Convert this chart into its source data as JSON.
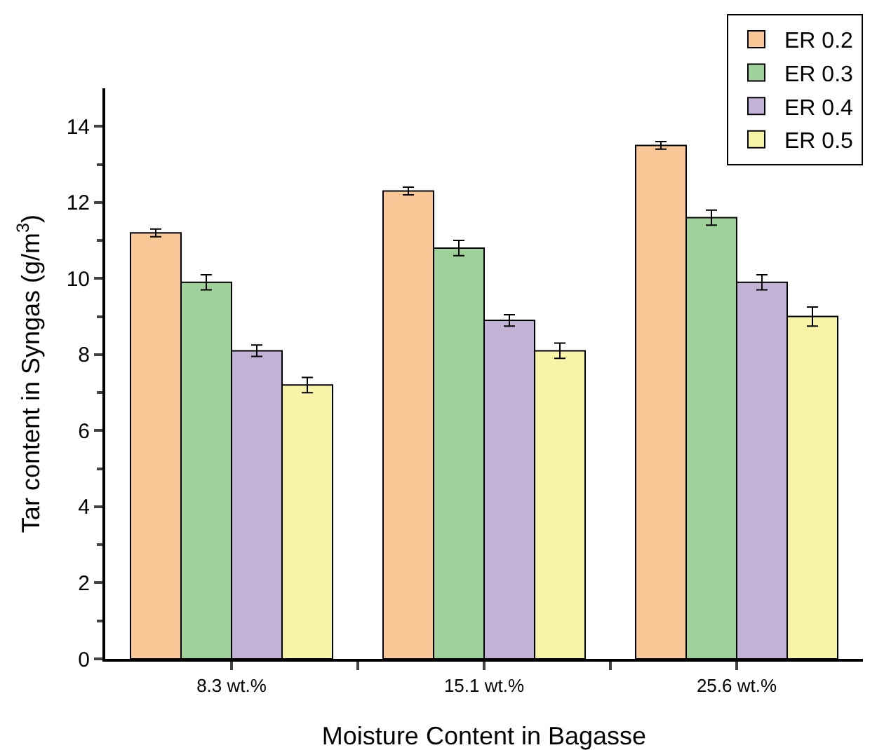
{
  "chart_data": {
    "type": "bar",
    "xlabel": "Moisture Content in Bagasse",
    "ylabel": "Tar content in Syngas (g/m$^{3}$)",
    "categories": [
      "8.3 wt.%",
      "15.1 wt.%",
      "25.6 wt.%"
    ],
    "series": [
      {
        "name": "ER 0.2",
        "color": "#fac896",
        "values": [
          11.2,
          12.3,
          13.5
        ],
        "errors": [
          0.1,
          0.1,
          0.1
        ]
      },
      {
        "name": "ER 0.3",
        "color": "#9ed29a",
        "values": [
          9.9,
          10.8,
          11.6
        ],
        "errors": [
          0.2,
          0.2,
          0.2
        ]
      },
      {
        "name": "ER 0.4",
        "color": "#c2b2d6",
        "values": [
          8.1,
          8.9,
          9.9
        ],
        "errors": [
          0.15,
          0.15,
          0.2
        ]
      },
      {
        "name": "ER 0.5",
        "color": "#f7f4a8",
        "values": [
          7.2,
          8.1,
          9.0
        ],
        "errors": [
          0.2,
          0.2,
          0.25
        ]
      }
    ],
    "ylim": [
      0,
      15
    ],
    "yticks": [
      0,
      2,
      4,
      6,
      8,
      10,
      12,
      14
    ],
    "grid": false,
    "legend": "top right"
  }
}
